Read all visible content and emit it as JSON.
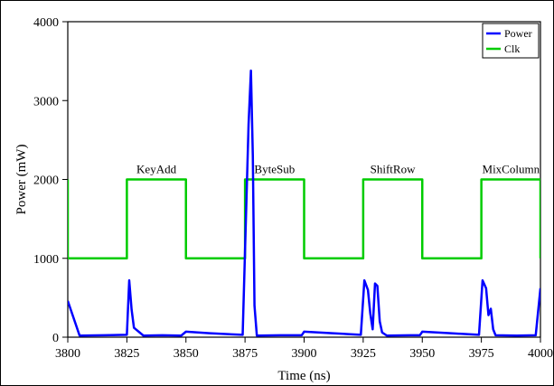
{
  "chart_data": {
    "type": "line",
    "title": "",
    "xlabel": "Time (ns)",
    "ylabel": "Power (mW)",
    "xlim": [
      3800,
      4000
    ],
    "ylim": [
      0,
      4000
    ],
    "x_ticks": [
      3800,
      3825,
      3850,
      3875,
      3900,
      3925,
      3950,
      3975,
      4000
    ],
    "y_ticks": [
      0,
      1000,
      2000,
      3000,
      4000
    ],
    "grid": false,
    "legend_position": "top-right",
    "series": [
      {
        "name": "Power",
        "color": "#0000ff",
        "points": [
          [
            3800,
            460
          ],
          [
            3805,
            20
          ],
          [
            3815,
            25
          ],
          [
            3825,
            30
          ],
          [
            3826,
            720
          ],
          [
            3827,
            350
          ],
          [
            3828,
            120
          ],
          [
            3832,
            20
          ],
          [
            3840,
            25
          ],
          [
            3848,
            20
          ],
          [
            3850,
            70
          ],
          [
            3860,
            50
          ],
          [
            3874,
            30
          ],
          [
            3875,
            1100
          ],
          [
            3876.5,
            2700
          ],
          [
            3877.5,
            3380
          ],
          [
            3878.3,
            2300
          ],
          [
            3879,
            400
          ],
          [
            3880,
            20
          ],
          [
            3890,
            25
          ],
          [
            3899,
            25
          ],
          [
            3900,
            70
          ],
          [
            3912,
            50
          ],
          [
            3924,
            30
          ],
          [
            3925.5,
            720
          ],
          [
            3927,
            600
          ],
          [
            3928,
            300
          ],
          [
            3929,
            100
          ],
          [
            3930,
            680
          ],
          [
            3931,
            650
          ],
          [
            3932,
            200
          ],
          [
            3933,
            60
          ],
          [
            3935,
            20
          ],
          [
            3945,
            25
          ],
          [
            3949,
            25
          ],
          [
            3950,
            70
          ],
          [
            3962,
            50
          ],
          [
            3974,
            30
          ],
          [
            3975.5,
            720
          ],
          [
            3977,
            620
          ],
          [
            3978,
            280
          ],
          [
            3979,
            360
          ],
          [
            3980,
            100
          ],
          [
            3981,
            25
          ],
          [
            3990,
            20
          ],
          [
            3998,
            25
          ],
          [
            4000,
            620
          ]
        ]
      },
      {
        "name": "Clk",
        "color": "#00cc00",
        "points": [
          [
            3800,
            2000
          ],
          [
            3800,
            1000
          ],
          [
            3825,
            1000
          ],
          [
            3825,
            2000
          ],
          [
            3850,
            2000
          ],
          [
            3850,
            1000
          ],
          [
            3875,
            1000
          ],
          [
            3875,
            2000
          ],
          [
            3900,
            2000
          ],
          [
            3900,
            1000
          ],
          [
            3925,
            1000
          ],
          [
            3925,
            2000
          ],
          [
            3950,
            2000
          ],
          [
            3950,
            1000
          ],
          [
            3975,
            1000
          ],
          [
            3975,
            2000
          ],
          [
            4000,
            2000
          ],
          [
            4000,
            1000
          ]
        ]
      }
    ],
    "annotations": [
      {
        "text": "KeyAdd",
        "x": 3837.5,
        "y": 2000
      },
      {
        "text": "ByteSub",
        "x": 3887.5,
        "y": 2000
      },
      {
        "text": "ShiftRow",
        "x": 3937.5,
        "y": 2000
      },
      {
        "text": "MixColumn",
        "x": 3987.5,
        "y": 2000
      }
    ]
  }
}
